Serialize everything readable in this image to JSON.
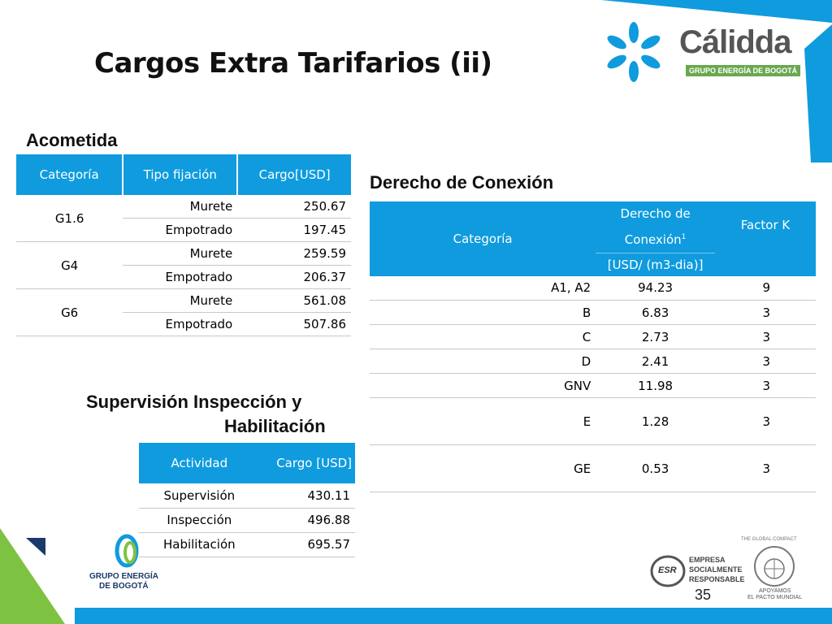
{
  "title": "Cargos Extra Tarifarios (ii)",
  "page_number": "35",
  "colors": {
    "accent": "#0f9bde",
    "green": "#7ec242",
    "dark_blue": "#1b3a6b"
  },
  "logo": {
    "brand": "Cálidda",
    "sub": "GRUPO ENERGÍA DE BOGOTÁ"
  },
  "bottom_logo": {
    "line1": "GRUPO ENERGÍA",
    "line2": "DE BOGOTÁ"
  },
  "esr": {
    "badge": "ESR",
    "line1": "EMPRESA",
    "line2": "SOCIALMENTE",
    "line3": "RESPONSABLE"
  },
  "global_compact": {
    "ring": "THE GLOBAL COMPACT",
    "line1": "APOYAMOS",
    "line2": "EL PACTO MUNDIAL"
  },
  "acometida": {
    "heading": "Acometida",
    "headers": [
      "Categoría",
      "Tipo fijación",
      "Cargo[USD]"
    ],
    "rows": [
      {
        "cat": "G1.6",
        "tipo": "Murete",
        "cargo": "250.67"
      },
      {
        "cat": "",
        "tipo": "Empotrado",
        "cargo": "197.45"
      },
      {
        "cat": "G4",
        "tipo": "Murete",
        "cargo": "259.59"
      },
      {
        "cat": "",
        "tipo": "Empotrado",
        "cargo": "206.37"
      },
      {
        "cat": "G6",
        "tipo": "Murete",
        "cargo": "561.08"
      },
      {
        "cat": "",
        "tipo": "Empotrado",
        "cargo": "507.86"
      }
    ]
  },
  "derecho": {
    "heading": "Derecho de Conexión",
    "header_cat": "Categoría",
    "header_dc_line1": "Derecho de",
    "header_dc_line2": "Conexión",
    "header_dc_sup": "1",
    "header_dc_unit": "[USD/ (m3-dia)]",
    "header_k": "Factor K",
    "rows": [
      {
        "cat": "A1, A2",
        "dc": "94.23",
        "k": "9"
      },
      {
        "cat": "B",
        "dc": "6.83",
        "k": "3"
      },
      {
        "cat": "C",
        "dc": "2.73",
        "k": "3"
      },
      {
        "cat": "D",
        "dc": "2.41",
        "k": "3"
      },
      {
        "cat": "GNV",
        "dc": "11.98",
        "k": "3"
      },
      {
        "cat": "E",
        "dc": "1.28",
        "k": "3"
      },
      {
        "cat": "GE",
        "dc": "0.53",
        "k": "3"
      }
    ]
  },
  "supervision": {
    "heading_line1": "Supervisión Inspección y",
    "heading_line2": "Habilitación",
    "headers": [
      "Actividad",
      "Cargo  [USD]"
    ],
    "rows": [
      {
        "act": "Supervisión",
        "cargo": "430.11"
      },
      {
        "act": "Inspección",
        "cargo": "496.88"
      },
      {
        "act": "Habilitación",
        "cargo": "695.57"
      }
    ]
  }
}
